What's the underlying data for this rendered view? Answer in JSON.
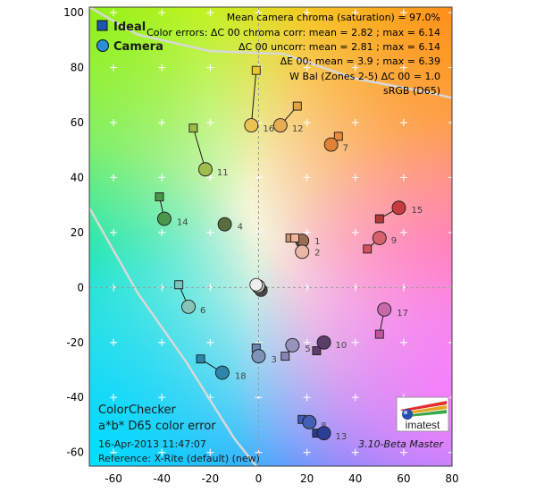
{
  "chart_data": {
    "type": "scatter",
    "xlim": [
      -70,
      80
    ],
    "ylim": [
      -65,
      102
    ],
    "x_ticks": [
      -60,
      -40,
      -20,
      0,
      20,
      40,
      60,
      80
    ],
    "y_ticks": [
      -60,
      -40,
      -20,
      0,
      20,
      40,
      60,
      80,
      100
    ],
    "grid": true,
    "legend_position": "top-left",
    "series": [
      {
        "name": "Ideal",
        "marker": "square"
      },
      {
        "name": "Camera",
        "marker": "circle"
      }
    ],
    "stats_lines": [
      "Mean camera chroma (saturation) = 97.0%",
      "Color errors: ΔC 00 chroma corr:  mean = 2.82 ;  max = 6.14",
      "ΔC 00 uncorr:  mean = 2.81 ;  max = 6.14",
      "ΔE 00:  mean = 3.9 ;  max = 6.39",
      "W Bal (Zones 2-5) ΔC 00 = 1.0",
      "sRGB (D65)"
    ],
    "title_lines": [
      "ColorChecker",
      "a*b* D65 color error"
    ],
    "date": "16-Apr-2013 11:47:07",
    "reference": "Reference: X-Rite (default) (new)",
    "logo_text": "imatest",
    "version": "3.10-Beta  Master",
    "gamut_boundary": [
      [
        -70,
        29
      ],
      [
        -50,
        -2
      ],
      [
        -30,
        -27
      ],
      [
        -10,
        -55
      ],
      [
        0,
        -66
      ]
    ],
    "gamut_boundary_top": [
      [
        -70,
        102
      ],
      [
        -50,
        92
      ],
      [
        -20,
        86
      ],
      [
        10,
        85
      ],
      [
        40,
        76
      ],
      [
        70,
        71
      ],
      [
        80,
        69
      ]
    ],
    "patches": [
      {
        "id": "1",
        "ideal": [
          13,
          18
        ],
        "camera": [
          18,
          17
        ],
        "ideal_color": "#c9946f",
        "camera_color": "#9a6c55",
        "label_dx": 4,
        "label_dy": 1
      },
      {
        "id": "2",
        "ideal": [
          15,
          18
        ],
        "camera": [
          18,
          13
        ],
        "ideal_color": "#f2b39a",
        "camera_color": "#eab7a4",
        "label_dx": 4,
        "label_dy": 1
      },
      {
        "id": "3",
        "ideal": [
          -1,
          -22
        ],
        "camera": [
          0,
          -25
        ],
        "ideal_color": "#6c86b2",
        "camera_color": "#7d93b8",
        "label_dx": 4,
        "label_dy": -2
      },
      {
        "id": "4",
        "ideal": [
          -14,
          23
        ],
        "camera": [
          -14,
          23
        ],
        "ideal_color": "#5b6d3e",
        "camera_color": "#5b6d3e",
        "label_dx": 4,
        "label_dy": -1
      },
      {
        "id": "5",
        "ideal": [
          11,
          -25
        ],
        "camera": [
          14,
          -21
        ],
        "ideal_color": "#8885b5",
        "camera_color": "#9793bd",
        "label_dx": 4,
        "label_dy": -2
      },
      {
        "id": "6",
        "ideal": [
          -33,
          1
        ],
        "camera": [
          -29,
          -7
        ],
        "ideal_color": "#7ec4b9",
        "camera_color": "#86c4b8",
        "label_dx": 3,
        "label_dy": -2
      },
      {
        "id": "7",
        "ideal": [
          33,
          55
        ],
        "camera": [
          30,
          52
        ],
        "ideal_color": "#e68d3e",
        "camera_color": "#e08236",
        "label_dx": 3,
        "label_dy": -2
      },
      {
        "id": "8",
        "ideal": [
          18,
          -48
        ],
        "camera": [
          21,
          -49
        ],
        "ideal_color": "#3f5cb0",
        "camera_color": "#4460b4",
        "label_dx": 3,
        "label_dy": -2
      },
      {
        "id": "9",
        "ideal": [
          45,
          14
        ],
        "camera": [
          50,
          18
        ],
        "ideal_color": "#d1535d",
        "camera_color": "#d7616c",
        "label_dx": 3,
        "label_dy": -1
      },
      {
        "id": "10",
        "ideal": [
          24,
          -23
        ],
        "camera": [
          27,
          -20
        ],
        "ideal_color": "#5e3c6b",
        "camera_color": "#5a3d6a",
        "label_dx": 3,
        "label_dy": -1
      },
      {
        "id": "11",
        "ideal": [
          -27,
          58
        ],
        "camera": [
          -22,
          43
        ],
        "ideal_color": "#9dbc43",
        "camera_color": "#9fbd4d",
        "label_dx": 3,
        "label_dy": -2
      },
      {
        "id": "12",
        "ideal": [
          16,
          66
        ],
        "camera": [
          9,
          59
        ],
        "ideal_color": "#e6a236",
        "camera_color": "#e6ac55",
        "label_dx": 3,
        "label_dy": -2
      },
      {
        "id": "13",
        "ideal": [
          24,
          -53
        ],
        "camera": [
          27,
          -53
        ],
        "ideal_color": "#283d8e",
        "camera_color": "#2b3f95",
        "label_dx": 3,
        "label_dy": -2
      },
      {
        "id": "14",
        "ideal": [
          -41,
          33
        ],
        "camera": [
          -39,
          25
        ],
        "ideal_color": "#469748",
        "camera_color": "#4a964d",
        "label_dx": 4,
        "label_dy": -2
      },
      {
        "id": "15",
        "ideal": [
          50,
          25
        ],
        "camera": [
          58,
          29
        ],
        "ideal_color": "#b23a37",
        "camera_color": "#c83a3e",
        "label_dx": 4,
        "label_dy": -1
      },
      {
        "id": "16",
        "ideal": [
          -1,
          79
        ],
        "camera": [
          -3,
          59
        ],
        "ideal_color": "#ecc72a",
        "camera_color": "#ecc255",
        "label_dx": 3,
        "label_dy": -2
      },
      {
        "id": "17",
        "ideal": [
          50,
          -17
        ],
        "camera": [
          52,
          -8
        ],
        "ideal_color": "#be549a",
        "camera_color": "#c868aa",
        "label_dx": 4,
        "label_dy": -2
      },
      {
        "id": "18",
        "ideal": [
          -24,
          -26
        ],
        "camera": [
          -15,
          -31
        ],
        "ideal_color": "#2a87aa",
        "camera_color": "#2c86ab",
        "label_dx": 4,
        "label_dy": -2
      }
    ],
    "neutral_points": [
      {
        "camera": [
          1,
          -1
        ],
        "color": "#4a4a4a"
      },
      {
        "camera": [
          0,
          0
        ],
        "color": "#8a8a8a"
      },
      {
        "camera": [
          0,
          0.5
        ],
        "color": "#bdbdbd"
      },
      {
        "camera": [
          -1,
          1
        ],
        "color": "#efefef"
      }
    ]
  }
}
